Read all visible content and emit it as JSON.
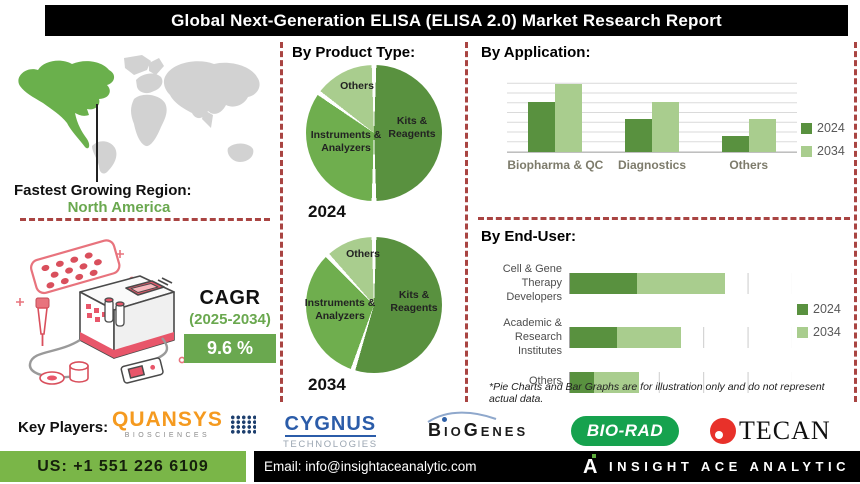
{
  "title": "Global Next-Generation ELISA (ELISA 2.0) Market Research Report",
  "region": {
    "label": "Fastest Growing Region:",
    "value": "North America"
  },
  "cagr": {
    "label": "CAGR",
    "period": "(2025-2034)",
    "value": "9.6 %"
  },
  "sections": {
    "product_type": "By Product Type:",
    "application": "By Application:",
    "end_user": "By End-User:"
  },
  "footnote": "*Pie Charts and Bar Graphs are for illustration only and do not represent actual data.",
  "key_players": {
    "label": "Key Players:",
    "quansys_name": "QUANSYS",
    "quansys_sub": "BIOSCIENCES",
    "cygnus_name": "CYGNUS",
    "cygnus_sub": "TECHNOLOGIES",
    "biogenes_name": "BioGenes",
    "biorad_name": "BIO-RAD",
    "tecan_name": "TECAN"
  },
  "footer": {
    "phone": "US: +1 551 226 6109",
    "email": "Email: info@insightaceanalytic.com",
    "brand": "INSIGHT ACE ANALYTIC"
  },
  "colors": {
    "series_2024_green": "#59913f",
    "series_2034_green": "#a9cd8e",
    "instruments_green": "#6fae4e",
    "map_highlight_green": "#6ab04c",
    "map_gray": "#d2d2d2",
    "dashed_divider_red": "#a94442",
    "cagr_box_green": "#6aa84f",
    "phone_bar_green": "#7ab648",
    "quansys_orange": "#f59a1f",
    "cygnus_blue": "#2b5ca9",
    "biorad_green": "#16a24e",
    "tecan_red": "#e8312a",
    "machine_red": "#e8566a"
  },
  "chart_data": [
    {
      "type": "pie",
      "title": "By Product Type",
      "year_label": "2024",
      "slices": [
        {
          "label": "Kits & Reagents",
          "value": 50,
          "color": "#59913f"
        },
        {
          "label": "Instruments & Analyzers",
          "value": 35,
          "color": "#6fae4e"
        },
        {
          "label": "Others",
          "value": 15,
          "color": "#a9cd8e"
        }
      ]
    },
    {
      "type": "pie",
      "title": "By Product Type",
      "year_label": "2034",
      "slices": [
        {
          "label": "Kits & Reagents",
          "value": 55,
          "color": "#59913f"
        },
        {
          "label": "Instruments & Analyzers",
          "value": 33,
          "color": "#6fae4e"
        },
        {
          "label": "Others",
          "value": 12,
          "color": "#a9cd8e"
        }
      ]
    },
    {
      "type": "bar",
      "title": "By Application",
      "categories": [
        "Biopharma & QC",
        "Diagnostics",
        "Others"
      ],
      "series": [
        {
          "name": "2024",
          "color": "#59913f",
          "values": [
            64,
            42,
            20
          ]
        },
        {
          "name": "2034",
          "color": "#a9cd8e",
          "values": [
            87,
            64,
            42
          ]
        }
      ],
      "ylim": [
        0,
        100
      ],
      "grid": true,
      "legend_position": "right",
      "note": "illustrative data"
    },
    {
      "type": "bar",
      "orientation": "horizontal-stacked",
      "title": "By End-User",
      "categories": [
        "Cell & Gene Therapy Developers",
        "Academic & Research Institutes",
        "Others"
      ],
      "series": [
        {
          "name": "2024",
          "color": "#59913f",
          "values": [
            30,
            21,
            11
          ]
        },
        {
          "name": "2034",
          "color": "#a9cd8e",
          "values": [
            40,
            29,
            20
          ]
        }
      ],
      "xlim": [
        0,
        100
      ],
      "grid": true,
      "legend_position": "right",
      "note": "illustrative data"
    }
  ]
}
